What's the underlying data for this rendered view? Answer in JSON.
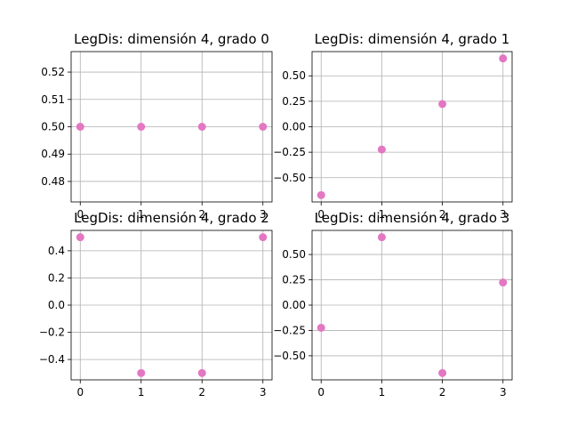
{
  "chart_data": [
    {
      "type": "scatter",
      "title": "LegDis: dimensión 4, grado 0",
      "x": [
        0,
        1,
        2,
        3
      ],
      "y": [
        0.5,
        0.5,
        0.5,
        0.5
      ],
      "xlim": [
        -0.15,
        3.15
      ],
      "ylim": [
        0.4725,
        0.5275
      ],
      "xticks": [
        0,
        1,
        2,
        3
      ],
      "xtick_labels": [
        "0",
        "1",
        "2",
        "3"
      ],
      "yticks": [
        0.48,
        0.49,
        0.5,
        0.51,
        0.52
      ],
      "ytick_labels": [
        "0.48",
        "0.49",
        "0.50",
        "0.51",
        "0.52"
      ],
      "grid": true,
      "color": "#e377c2"
    },
    {
      "type": "scatter",
      "title": "LegDis: dimensión 4, grado 1",
      "x": [
        0,
        1,
        2,
        3
      ],
      "y": [
        -0.6708,
        -0.2236,
        0.2236,
        0.6708
      ],
      "xlim": [
        -0.15,
        3.15
      ],
      "ylim": [
        -0.7379,
        0.7379
      ],
      "xticks": [
        0,
        1,
        2,
        3
      ],
      "xtick_labels": [
        "0",
        "1",
        "2",
        "3"
      ],
      "yticks": [
        -0.5,
        -0.25,
        0.0,
        0.25,
        0.5
      ],
      "ytick_labels": [
        "−0.50",
        "−0.25",
        "0.00",
        "0.25",
        "0.50"
      ],
      "grid": true,
      "color": "#e377c2"
    },
    {
      "type": "scatter",
      "title": "LegDis: dimensión 4, grado 2",
      "x": [
        0,
        1,
        2,
        3
      ],
      "y": [
        0.5,
        -0.5,
        -0.5,
        0.5
      ],
      "xlim": [
        -0.15,
        3.15
      ],
      "ylim": [
        -0.55,
        0.55
      ],
      "xticks": [
        0,
        1,
        2,
        3
      ],
      "xtick_labels": [
        "0",
        "1",
        "2",
        "3"
      ],
      "yticks": [
        -0.4,
        -0.2,
        0.0,
        0.2,
        0.4
      ],
      "ytick_labels": [
        "−0.4",
        "−0.2",
        "0.0",
        "0.2",
        "0.4"
      ],
      "grid": true,
      "color": "#e377c2"
    },
    {
      "type": "scatter",
      "title": "LegDis: dimensión 4, grado 3",
      "x": [
        0,
        1,
        2,
        3
      ],
      "y": [
        -0.2236,
        0.6708,
        -0.6708,
        0.2236
      ],
      "xlim": [
        -0.15,
        3.15
      ],
      "ylim": [
        -0.7379,
        0.7379
      ],
      "xticks": [
        0,
        1,
        2,
        3
      ],
      "xtick_labels": [
        "0",
        "1",
        "2",
        "3"
      ],
      "yticks": [
        -0.5,
        -0.25,
        0.0,
        0.25,
        0.5
      ],
      "ytick_labels": [
        "−0.50",
        "−0.25",
        "0.00",
        "0.25",
        "0.50"
      ],
      "grid": true,
      "color": "#e377c2"
    }
  ]
}
